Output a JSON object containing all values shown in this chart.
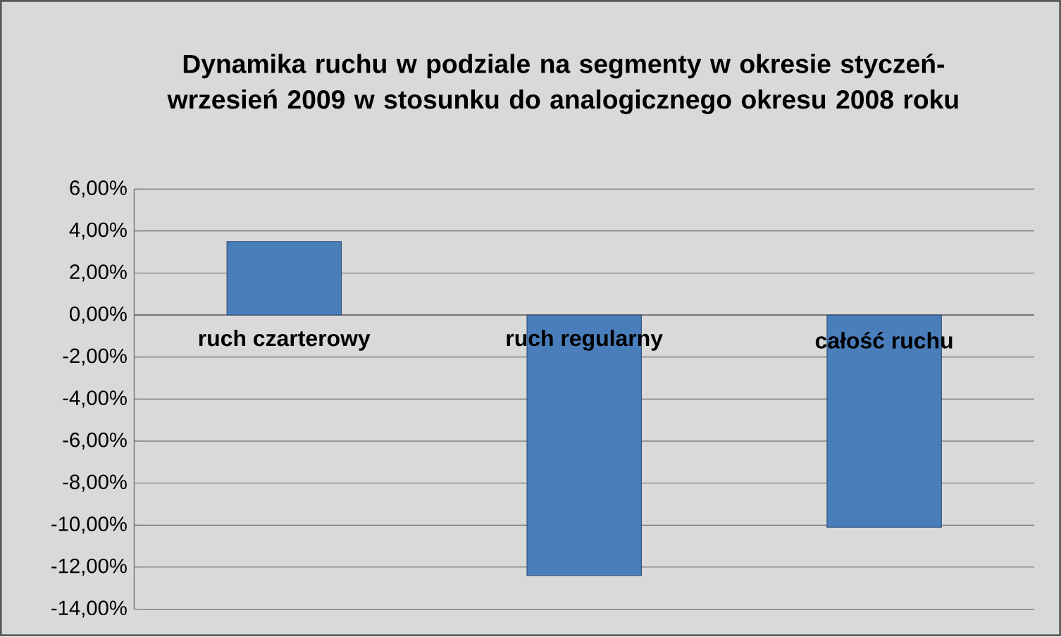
{
  "chart_data": {
    "type": "bar",
    "title": "Dynamika ruchu w podziale na segmenty w okresie styczeń-wrzesień 2009 w stosunku do analogicznego okresu 2008 roku",
    "categories": [
      "ruch czarterowy",
      "ruch regularny",
      "całość ruchu"
    ],
    "values": [
      3.5,
      -12.4,
      -10.1
    ],
    "color": "#4a7ebb",
    "ylim": [
      -14,
      6
    ],
    "yticks": [
      {
        "value": -14,
        "label": "-14,00%"
      },
      {
        "value": -12,
        "label": "-12,00%"
      },
      {
        "value": -10,
        "label": "-10,00%"
      },
      {
        "value": -8,
        "label": "-8,00%"
      },
      {
        "value": -6,
        "label": "-6,00%"
      },
      {
        "value": -4,
        "label": "-4,00%"
      },
      {
        "value": -2,
        "label": "-2,00%"
      },
      {
        "value": 0,
        "label": "0,00%"
      },
      {
        "value": 2,
        "label": "2,00%"
      },
      {
        "value": 4,
        "label": "4,00%"
      },
      {
        "value": 6,
        "label": "6,00%"
      }
    ],
    "grid": "y"
  }
}
